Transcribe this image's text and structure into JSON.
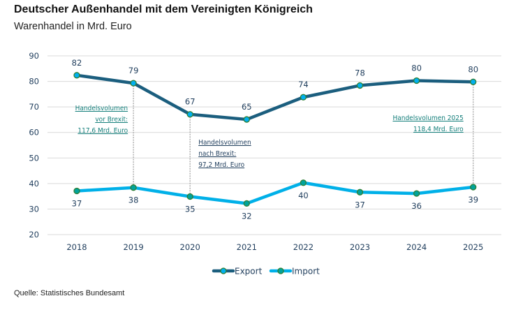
{
  "header": {
    "title": "Deutscher Außenhandel mit dem Vereinigten Königreich",
    "subtitle": "Warenhandel in Mrd. Euro"
  },
  "footer": {
    "source": "Quelle: Statistisches Bundesamt"
  },
  "colors": {
    "export_line": "#1b5e7e",
    "import_line": "#00b0e8",
    "export_marker_fill": "#00b0f0",
    "import_marker_fill": "#00a39b",
    "marker_border": "#2e7d32",
    "grid": "#d9d9d9",
    "annotation_teal": "#137e7a",
    "annotation_navy": "#1f3d5c"
  },
  "chart_data": {
    "type": "line",
    "title": "Deutscher Außenhandel mit dem Vereinigten Königreich",
    "subtitle": "Warenhandel in Mrd. Euro",
    "xlabel": "",
    "ylabel": "",
    "ylim": [
      20,
      90
    ],
    "yticks": [
      20,
      30,
      40,
      50,
      60,
      70,
      80,
      90
    ],
    "grid": true,
    "categories": [
      "2018",
      "2019",
      "2020",
      "2021",
      "2022",
      "2023",
      "2024",
      "2025"
    ],
    "series": [
      {
        "name": "Export",
        "values": [
          82.4,
          79.3,
          67.1,
          65.1,
          73.8,
          78.4,
          80.3,
          79.8
        ],
        "labels": [
          "82",
          "79",
          "67",
          "65",
          "74",
          "78",
          "80",
          "80"
        ],
        "label_position": "above"
      },
      {
        "name": "Import",
        "values": [
          37.1,
          38.4,
          34.9,
          32.2,
          40.3,
          36.6,
          36.1,
          38.6
        ],
        "labels": [
          "37",
          "38",
          "35",
          "32",
          "40",
          "37",
          "36",
          "39"
        ],
        "label_position": "below"
      }
    ],
    "legend": {
      "position": "bottom-center",
      "entries": [
        "Export",
        "Import"
      ]
    },
    "annotations": [
      {
        "category": "2019",
        "lines": [
          "Handelsvolumen",
          "vor Brexit:",
          "117,6 Mrd. Euro"
        ],
        "color": "teal",
        "align": "right"
      },
      {
        "category": "2020",
        "lines": [
          "Handelsvolumen",
          "nach Brexit:",
          "97,2 Mrd. Euro"
        ],
        "color": "navy",
        "align": "left"
      },
      {
        "category": "2025",
        "lines": [
          "Handelsvolumen 2025",
          "118,4 Mrd. Euro"
        ],
        "color": "teal",
        "align": "right"
      }
    ]
  }
}
